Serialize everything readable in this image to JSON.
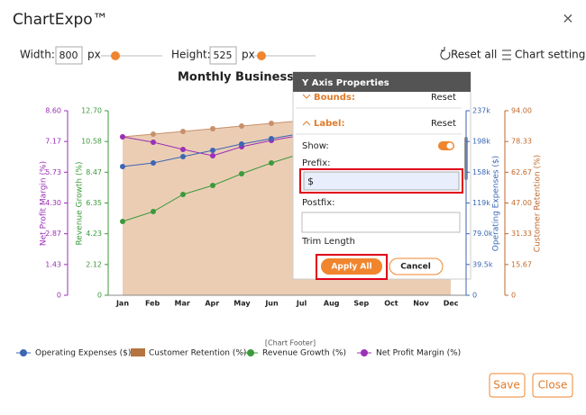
{
  "header": {
    "title": "ChartExpo™",
    "close": "×"
  },
  "toolbar": {
    "width_label": "Width:",
    "width_value": "800",
    "width_unit": "px",
    "height_label": "Height:",
    "height_value": "525",
    "height_unit": "px",
    "reset_all": "Reset all",
    "chart_settings": "Chart settings"
  },
  "chart": {
    "title": "Monthly Business Pe",
    "axes": [
      {
        "label": "Net Profit Margin (%)",
        "color": "#9b30b8",
        "ticks": [
          "8.60",
          "7.17",
          "5.73",
          "4.30",
          "2.87",
          "1.43",
          "0"
        ]
      },
      {
        "label": "Revenue Growth (%)",
        "color": "#3c9a3c",
        "ticks": [
          "12.70",
          "10.58",
          "8.47",
          "6.35",
          "4.23",
          "2.12",
          "0"
        ]
      },
      {
        "label": "Operating Expenses ($)",
        "color": "#3b66b3",
        "ticks": [
          "237k",
          "198k",
          "158k",
          "119k",
          "79.0k",
          "39.5k",
          "0"
        ]
      },
      {
        "label": "Customer Retention (%)",
        "color": "#c0682c",
        "ticks": [
          "94.00",
          "78.33",
          "62.67",
          "47.00",
          "31.33",
          "15.67",
          "0"
        ]
      }
    ],
    "months": [
      "Jan",
      "Feb",
      "Mar",
      "Apr",
      "May",
      "Jun",
      "Jul",
      "Aug",
      "Sep",
      "Oct",
      "Nov",
      "Dec"
    ],
    "footer": "[Chart Footer]",
    "legend": [
      "Operating Expenses ($)",
      "Customer Retention (%)",
      "Revenue Growth (%)",
      "Net Profit Margin (%)"
    ]
  },
  "panel": {
    "title": "Y Axis Properties",
    "bounds": "Bounds:",
    "label": "Label:",
    "reset": "Reset",
    "show": "Show:",
    "prefix": "Prefix:",
    "prefix_value": "$",
    "postfix": "Postfix:",
    "trim_length": "Trim Length",
    "apply": "Apply All",
    "cancel": "Cancel"
  },
  "buttons": {
    "save": "Save",
    "close": "Close"
  }
}
